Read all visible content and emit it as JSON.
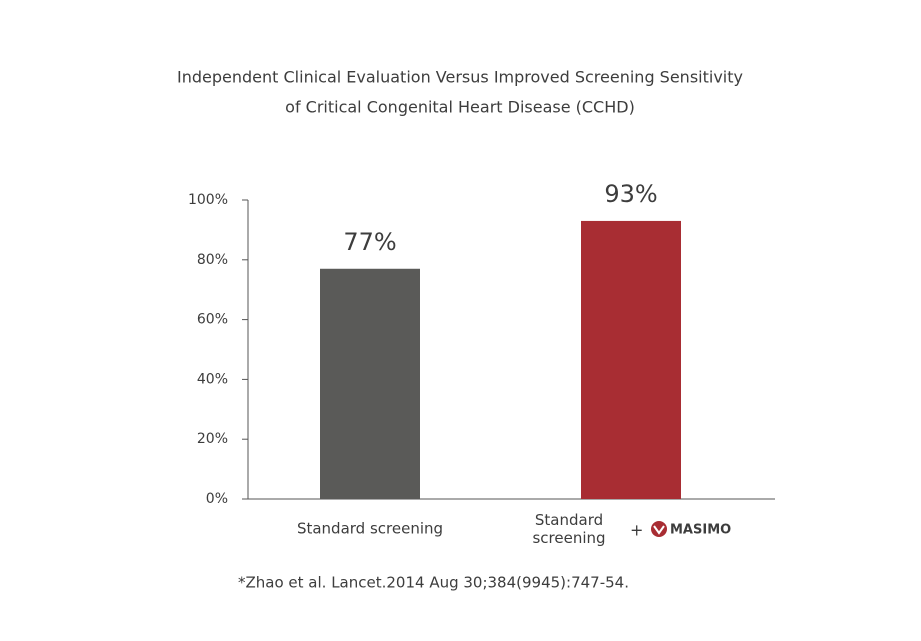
{
  "chart_data": {
    "type": "bar",
    "title": [
      "Independent Clinical Evaluation Versus Improved Screening Sensitivity",
      "of Critical Congenital Heart Disease (CCHD)"
    ],
    "categories": [
      "Standard screening",
      "Standard screening"
    ],
    "category_suffix": {
      "plus": "+",
      "logo": "MASIMO"
    },
    "values": [
      77,
      93
    ],
    "value_labels": [
      "77%",
      "93%"
    ],
    "colors": [
      "#5a5a58",
      "#a82d33"
    ],
    "value_label_colors": [
      "#3d3d3d",
      "#a82d33"
    ],
    "ylim": [
      0,
      100
    ],
    "yticks": [
      {
        "value": 0,
        "label": "0%"
      },
      {
        "value": 20,
        "label": "20%"
      },
      {
        "value": 40,
        "label": "40%"
      },
      {
        "value": 60,
        "label": "60%"
      },
      {
        "value": 80,
        "label": "80%"
      },
      {
        "value": 100,
        "label": "100%"
      }
    ],
    "grid": false,
    "footnote": "*Zhao et al. Lancet.2014 Aug 30;384(9945):747-54."
  }
}
